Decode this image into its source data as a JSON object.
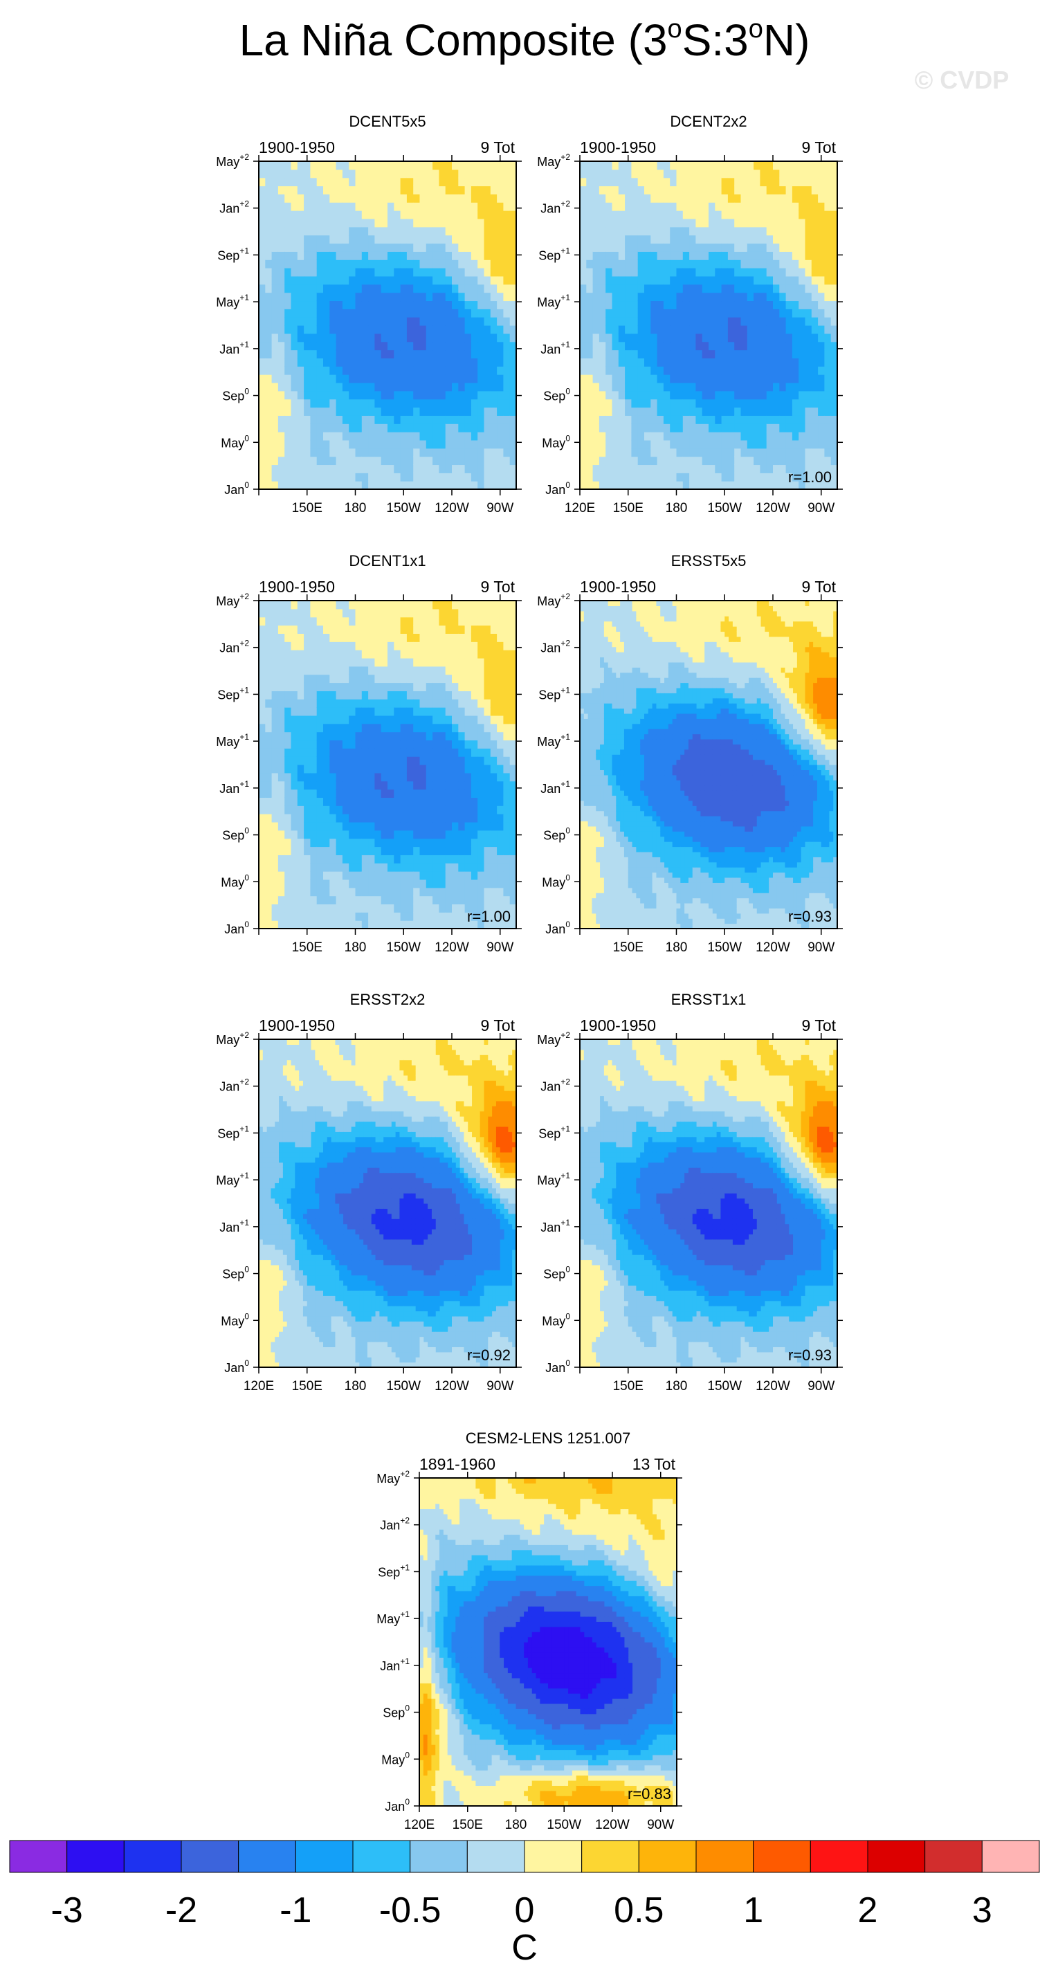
{
  "title": {
    "main": "La Niña Composite (3",
    "sup1": "o",
    "mid": "S:3",
    "sup2": "o",
    "end": "N)"
  },
  "watermark": "© CVDP",
  "colors": {
    "levels": [
      "#8a2be2",
      "#2d0ff2",
      "#1e32f0",
      "#3c64dc",
      "#2882f0",
      "#14a0f8",
      "#2dbef8",
      "#87c8ef",
      "#b4dcf0",
      "#fff5a0",
      "#fcd632",
      "#feb40a",
      "#fe8c00",
      "#fe5a00",
      "#fe1414",
      "#dc0000",
      "#d22d2d",
      "#ffb4b4"
    ],
    "frame": "#000000"
  },
  "y_ticks": [
    {
      "base": "May",
      "sup": "+2",
      "v": 28
    },
    {
      "base": "Jan",
      "sup": "+2",
      "v": 24
    },
    {
      "base": "Sep",
      "sup": "+1",
      "v": 20
    },
    {
      "base": "May",
      "sup": "+1",
      "v": 16
    },
    {
      "base": "Jan",
      "sup": "+1",
      "v": 12
    },
    {
      "base": "Sep",
      "sup": "0",
      "v": 8
    },
    {
      "base": "May",
      "sup": "0",
      "v": 4
    },
    {
      "base": "Jan",
      "sup": "0",
      "v": 0
    }
  ],
  "x_ticks": [
    {
      "label": "120E",
      "lon": 120
    },
    {
      "label": "150E",
      "lon": 150
    },
    {
      "label": "180",
      "lon": 180
    },
    {
      "label": "150W",
      "lon": 210
    },
    {
      "label": "120W",
      "lon": 240
    },
    {
      "label": "90W",
      "lon": 270
    }
  ],
  "chart_data": [
    {
      "type": "heatmap",
      "title": "DCENT5x5",
      "period": "1900-1950",
      "count": "9 Tot",
      "r_label": "",
      "show_120E": false,
      "xlim": [
        120,
        280
      ],
      "ylim": [
        0,
        28
      ],
      "core": -1.2,
      "east_warm": 0.6,
      "west_warm": 0.4,
      "style": "blocky"
    },
    {
      "type": "heatmap",
      "title": "DCENT2x2",
      "period": "1900-1950",
      "count": "9 Tot",
      "r_label": "r=1.00",
      "show_120E": true,
      "xlim": [
        120,
        280
      ],
      "ylim": [
        0,
        28
      ],
      "core": -1.2,
      "east_warm": 0.6,
      "west_warm": 0.4,
      "style": "blocky"
    },
    {
      "type": "heatmap",
      "title": "DCENT1x1",
      "period": "1900-1950",
      "count": "9 Tot",
      "r_label": "r=1.00",
      "show_120E": false,
      "xlim": [
        120,
        280
      ],
      "ylim": [
        0,
        28
      ],
      "core": -1.2,
      "east_warm": 0.6,
      "west_warm": 0.4,
      "style": "blocky"
    },
    {
      "type": "heatmap",
      "title": "ERSST5x5",
      "period": "1900-1950",
      "count": "9 Tot",
      "r_label": "r=0.93",
      "show_120E": false,
      "xlim": [
        120,
        280
      ],
      "ylim": [
        0,
        28
      ],
      "core": -1.6,
      "east_warm": 1.1,
      "west_warm": 0.35,
      "style": "smooth"
    },
    {
      "type": "heatmap",
      "title": "ERSST2x2",
      "period": "1900-1950",
      "count": "9 Tot",
      "r_label": "r=0.92",
      "show_120E": true,
      "xlim": [
        120,
        280
      ],
      "ylim": [
        0,
        28
      ],
      "core": -1.8,
      "east_warm": 1.3,
      "west_warm": 0.4,
      "style": "smooth"
    },
    {
      "type": "heatmap",
      "title": "ERSST1x1",
      "period": "1900-1950",
      "count": "9 Tot",
      "r_label": "r=0.93",
      "show_120E": false,
      "xlim": [
        120,
        280
      ],
      "ylim": [
        0,
        28
      ],
      "core": -1.8,
      "east_warm": 1.3,
      "west_warm": 0.4,
      "style": "smooth"
    },
    {
      "type": "heatmap",
      "title": "CESM2-LENS 1251.007",
      "period": "1891-1960",
      "count": "13 Tot",
      "r_label": "r=0.83",
      "show_120E": true,
      "xlim": [
        120,
        280
      ],
      "ylim": [
        0,
        28
      ],
      "core": -2.6,
      "east_warm": 0.3,
      "west_warm": 0.6,
      "style": "model"
    }
  ],
  "colorbar": {
    "levels": [
      -4,
      -3,
      -2.5,
      -2,
      -1.5,
      -1,
      -0.75,
      -0.5,
      -0.25,
      0,
      0.25,
      0.5,
      0.75,
      1,
      1.5,
      2,
      2.5,
      3,
      4
    ],
    "labels": [
      "-3",
      "-2",
      "-1",
      "-0.5",
      "0",
      "0.5",
      "1",
      "2",
      "3"
    ],
    "unit": "C"
  }
}
